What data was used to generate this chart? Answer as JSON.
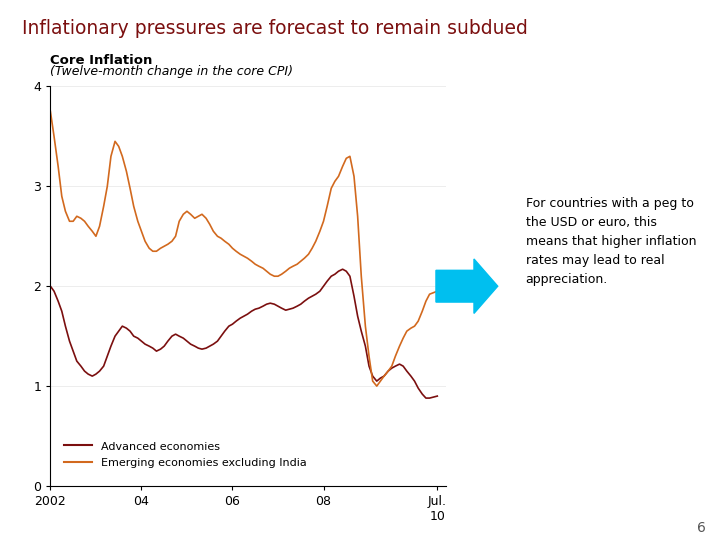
{
  "title": "Inflationary pressures are forecast to remain subdued",
  "title_color": "#7B0F0F",
  "subtitle_bold": "Core Inflation",
  "subtitle_italic": "(Twelve-month change in the core CPI)",
  "background_color": "#FFFFFF",
  "plot_bg_color": "#FFFFFF",
  "ylim": [
    0,
    4
  ],
  "yticks": [
    0,
    1,
    2,
    3,
    4
  ],
  "xtick_positions": [
    2002,
    2004,
    2006,
    2008,
    2010.5
  ],
  "xtick_labels": [
    "2002",
    "04",
    "06",
    "08",
    "Jul.\n10"
  ],
  "legend_adv": "Advanced economies",
  "legend_emg": "Emerging economies excluding India",
  "adv_color": "#7B0F0F",
  "emg_color": "#D2691E",
  "arrow_color": "#00BFEF",
  "annotation": "For countries with a peg to\nthe USD or euro, this\nmeans that higher inflation\nrates may lead to real\nappreciation.",
  "gold_line_color": "#D4A800",
  "page_number": "6",
  "adv_x": [
    2002.0,
    2002.08,
    2002.17,
    2002.25,
    2002.33,
    2002.42,
    2002.5,
    2002.58,
    2002.67,
    2002.75,
    2002.83,
    2002.92,
    2003.0,
    2003.08,
    2003.17,
    2003.25,
    2003.33,
    2003.42,
    2003.5,
    2003.58,
    2003.67,
    2003.75,
    2003.83,
    2003.92,
    2004.0,
    2004.08,
    2004.17,
    2004.25,
    2004.33,
    2004.42,
    2004.5,
    2004.58,
    2004.67,
    2004.75,
    2004.83,
    2004.92,
    2005.0,
    2005.08,
    2005.17,
    2005.25,
    2005.33,
    2005.42,
    2005.5,
    2005.58,
    2005.67,
    2005.75,
    2005.83,
    2005.92,
    2006.0,
    2006.08,
    2006.17,
    2006.25,
    2006.33,
    2006.42,
    2006.5,
    2006.58,
    2006.67,
    2006.75,
    2006.83,
    2006.92,
    2007.0,
    2007.08,
    2007.17,
    2007.25,
    2007.33,
    2007.42,
    2007.5,
    2007.58,
    2007.67,
    2007.75,
    2007.83,
    2007.92,
    2008.0,
    2008.08,
    2008.17,
    2008.25,
    2008.33,
    2008.42,
    2008.5,
    2008.58,
    2008.67,
    2008.75,
    2008.83,
    2008.92,
    2009.0,
    2009.08,
    2009.17,
    2009.25,
    2009.33,
    2009.42,
    2009.5,
    2009.58,
    2009.67,
    2009.75,
    2009.83,
    2009.92,
    2010.0,
    2010.08,
    2010.17,
    2010.25,
    2010.33,
    2010.5
  ],
  "adv_y": [
    2.0,
    1.95,
    1.85,
    1.75,
    1.6,
    1.45,
    1.35,
    1.25,
    1.2,
    1.15,
    1.12,
    1.1,
    1.12,
    1.15,
    1.2,
    1.3,
    1.4,
    1.5,
    1.55,
    1.6,
    1.58,
    1.55,
    1.5,
    1.48,
    1.45,
    1.42,
    1.4,
    1.38,
    1.35,
    1.37,
    1.4,
    1.45,
    1.5,
    1.52,
    1.5,
    1.48,
    1.45,
    1.42,
    1.4,
    1.38,
    1.37,
    1.38,
    1.4,
    1.42,
    1.45,
    1.5,
    1.55,
    1.6,
    1.62,
    1.65,
    1.68,
    1.7,
    1.72,
    1.75,
    1.77,
    1.78,
    1.8,
    1.82,
    1.83,
    1.82,
    1.8,
    1.78,
    1.76,
    1.77,
    1.78,
    1.8,
    1.82,
    1.85,
    1.88,
    1.9,
    1.92,
    1.95,
    2.0,
    2.05,
    2.1,
    2.12,
    2.15,
    2.17,
    2.15,
    2.1,
    1.9,
    1.7,
    1.55,
    1.4,
    1.2,
    1.1,
    1.05,
    1.08,
    1.1,
    1.15,
    1.18,
    1.2,
    1.22,
    1.2,
    1.15,
    1.1,
    1.05,
    0.98,
    0.92,
    0.88,
    0.88,
    0.9
  ],
  "emg_x": [
    2002.0,
    2002.08,
    2002.17,
    2002.25,
    2002.33,
    2002.42,
    2002.5,
    2002.58,
    2002.67,
    2002.75,
    2002.83,
    2002.92,
    2003.0,
    2003.08,
    2003.17,
    2003.25,
    2003.33,
    2003.42,
    2003.5,
    2003.58,
    2003.67,
    2003.75,
    2003.83,
    2003.92,
    2004.0,
    2004.08,
    2004.17,
    2004.25,
    2004.33,
    2004.42,
    2004.5,
    2004.58,
    2004.67,
    2004.75,
    2004.83,
    2004.92,
    2005.0,
    2005.08,
    2005.17,
    2005.25,
    2005.33,
    2005.42,
    2005.5,
    2005.58,
    2005.67,
    2005.75,
    2005.83,
    2005.92,
    2006.0,
    2006.08,
    2006.17,
    2006.25,
    2006.33,
    2006.42,
    2006.5,
    2006.58,
    2006.67,
    2006.75,
    2006.83,
    2006.92,
    2007.0,
    2007.08,
    2007.17,
    2007.25,
    2007.33,
    2007.42,
    2007.5,
    2007.58,
    2007.67,
    2007.75,
    2007.83,
    2007.92,
    2008.0,
    2008.08,
    2008.17,
    2008.25,
    2008.33,
    2008.42,
    2008.5,
    2008.58,
    2008.67,
    2008.75,
    2008.83,
    2008.92,
    2009.0,
    2009.08,
    2009.17,
    2009.25,
    2009.33,
    2009.42,
    2009.5,
    2009.58,
    2009.67,
    2009.75,
    2009.83,
    2009.92,
    2010.0,
    2010.08,
    2010.17,
    2010.25,
    2010.33,
    2010.5
  ],
  "emg_y": [
    3.75,
    3.5,
    3.2,
    2.9,
    2.75,
    2.65,
    2.65,
    2.7,
    2.68,
    2.65,
    2.6,
    2.55,
    2.5,
    2.6,
    2.8,
    3.0,
    3.3,
    3.45,
    3.4,
    3.3,
    3.15,
    2.98,
    2.8,
    2.65,
    2.55,
    2.45,
    2.38,
    2.35,
    2.35,
    2.38,
    2.4,
    2.42,
    2.45,
    2.5,
    2.65,
    2.72,
    2.75,
    2.72,
    2.68,
    2.7,
    2.72,
    2.68,
    2.62,
    2.55,
    2.5,
    2.48,
    2.45,
    2.42,
    2.38,
    2.35,
    2.32,
    2.3,
    2.28,
    2.25,
    2.22,
    2.2,
    2.18,
    2.15,
    2.12,
    2.1,
    2.1,
    2.12,
    2.15,
    2.18,
    2.2,
    2.22,
    2.25,
    2.28,
    2.32,
    2.38,
    2.45,
    2.55,
    2.65,
    2.8,
    2.98,
    3.05,
    3.1,
    3.2,
    3.28,
    3.3,
    3.1,
    2.7,
    2.1,
    1.6,
    1.3,
    1.05,
    1.0,
    1.05,
    1.1,
    1.15,
    1.2,
    1.3,
    1.4,
    1.48,
    1.55,
    1.58,
    1.6,
    1.65,
    1.75,
    1.85,
    1.92,
    1.95
  ]
}
